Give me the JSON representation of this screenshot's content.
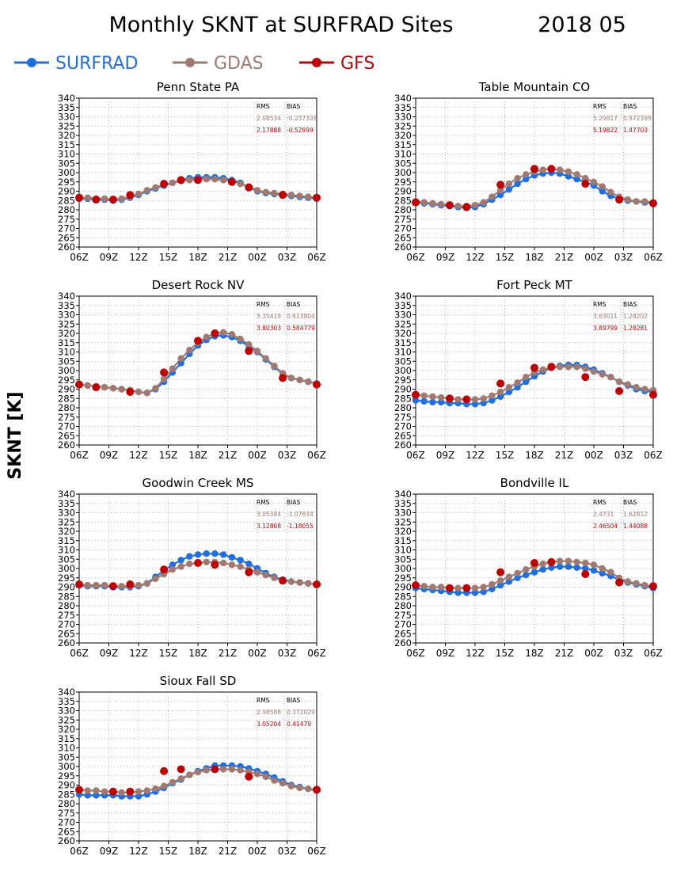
{
  "title": "Monthly SKNT at SURFRAD Sites",
  "date": "2018 05",
  "ylabel": "SKNT [K]",
  "legend": [
    {
      "name": "SURFRAD",
      "color": "#1f6fe0"
    },
    {
      "name": "GDAS",
      "color": "#a07a70"
    },
    {
      "name": "GFS",
      "color": "#c00000"
    }
  ],
  "stats_headers": {
    "rms": "RMS",
    "bias": "BIAS"
  },
  "chart_data": [
    {
      "type": "line",
      "title": "Penn State PA",
      "x_ticks": [
        "06Z",
        "09Z",
        "12Z",
        "15Z",
        "18Z",
        "21Z",
        "00Z",
        "03Z",
        "06Z"
      ],
      "ylim": [
        260,
        340
      ],
      "yticks": [
        260,
        265,
        270,
        275,
        280,
        285,
        290,
        295,
        300,
        305,
        310,
        315,
        320,
        325,
        330,
        335,
        340
      ],
      "grid": true,
      "stats": {
        "gdas": {
          "rms": "2.08534",
          "bias": "-0.237328"
        },
        "gfs": {
          "rms": "2.17888",
          "bias": "-0.52999"
        }
      },
      "series": [
        {
          "name": "SURFRAD",
          "values": [
            286,
            286,
            285.5,
            285.5,
            285,
            285.5,
            286.5,
            288,
            290,
            291.5,
            293,
            294.5,
            296,
            297,
            297.5,
            297.5,
            297.5,
            297,
            296,
            294.5,
            292,
            290,
            289,
            288.5,
            288,
            287.5,
            287,
            286.5,
            286
          ]
        },
        {
          "name": "GDAS",
          "values": [
            286.5,
            286.5,
            286,
            286,
            285.5,
            286,
            287,
            288.5,
            290.5,
            292,
            293.5,
            294.5,
            295.5,
            296,
            296.5,
            296.5,
            296.5,
            296,
            295.5,
            294,
            292.5,
            290.5,
            289.5,
            289,
            288.5,
            288,
            287.5,
            287,
            286.5
          ]
        },
        {
          "name": "GFS",
          "values": [
            286.5,
            null,
            285.5,
            null,
            285.5,
            null,
            288,
            null,
            null,
            null,
            294,
            null,
            296,
            null,
            296,
            null,
            null,
            null,
            295,
            null,
            292,
            null,
            null,
            null,
            288,
            null,
            null,
            null,
            286.5
          ]
        }
      ]
    },
    {
      "type": "line",
      "title": "Table Mountain CO",
      "x_ticks": [
        "06Z",
        "09Z",
        "12Z",
        "15Z",
        "18Z",
        "21Z",
        "00Z",
        "03Z",
        "06Z"
      ],
      "ylim": [
        260,
        340
      ],
      "yticks": [
        260,
        265,
        270,
        275,
        280,
        285,
        290,
        295,
        300,
        305,
        310,
        315,
        320,
        325,
        330,
        335,
        340
      ],
      "grid": true,
      "stats": {
        "gdas": {
          "rms": "5.29817",
          "bias": "0.972395"
        },
        "gfs": {
          "rms": "5.19822",
          "bias": "1.47703"
        }
      },
      "series": [
        {
          "name": "SURFRAD",
          "values": [
            284,
            283.5,
            283,
            282.5,
            282,
            281.5,
            281,
            281.5,
            283,
            285.5,
            288,
            291,
            294,
            296.5,
            298.5,
            299.5,
            300,
            299.5,
            298,
            296.5,
            295,
            293,
            290,
            287.5,
            286,
            285,
            284.5,
            284,
            283.5
          ]
        },
        {
          "name": "GDAS",
          "values": [
            284.5,
            284,
            283.5,
            283,
            282.5,
            282,
            282,
            282.5,
            284,
            287,
            290.5,
            294,
            297,
            299,
            300.5,
            301.5,
            302,
            301.5,
            300.5,
            299,
            297,
            295,
            292.5,
            289.5,
            287,
            285.5,
            284.5,
            284.5,
            284
          ]
        },
        {
          "name": "GFS",
          "values": [
            284,
            null,
            null,
            null,
            282.5,
            null,
            281.5,
            null,
            null,
            null,
            293.5,
            null,
            null,
            null,
            302,
            null,
            302,
            null,
            null,
            null,
            294,
            null,
            null,
            null,
            285.5,
            null,
            null,
            null,
            283.5
          ]
        }
      ]
    },
    {
      "type": "line",
      "title": "Desert Rock NV",
      "x_ticks": [
        "06Z",
        "09Z",
        "12Z",
        "15Z",
        "18Z",
        "21Z",
        "00Z",
        "03Z",
        "06Z"
      ],
      "ylim": [
        260,
        340
      ],
      "yticks": [
        260,
        265,
        270,
        275,
        280,
        285,
        290,
        295,
        300,
        305,
        310,
        315,
        320,
        325,
        330,
        335,
        340
      ],
      "grid": true,
      "stats": {
        "gdas": {
          "rms": "3.35419",
          "bias": "0.613804"
        },
        "gfs": {
          "rms": "3.80303",
          "bias": "0.584779"
        }
      },
      "series": [
        {
          "name": "SURFRAD",
          "values": [
            292.5,
            292,
            291.5,
            291,
            290.5,
            290,
            289.5,
            288.5,
            288,
            290,
            294,
            299,
            304,
            309,
            313.5,
            316.5,
            318.5,
            319,
            318,
            316,
            313,
            310,
            306,
            302,
            298,
            296,
            295,
            294,
            293
          ]
        },
        {
          "name": "GDAS",
          "values": [
            292.5,
            292,
            291.5,
            291,
            290.5,
            290,
            289.5,
            288.5,
            288,
            290.5,
            295.5,
            301,
            306.5,
            311,
            315,
            318,
            320,
            320.5,
            319.5,
            317,
            314,
            310.5,
            306.5,
            302.5,
            298.5,
            296,
            295,
            294,
            293
          ]
        },
        {
          "name": "GFS",
          "values": [
            292.5,
            null,
            291,
            null,
            null,
            null,
            288.5,
            null,
            null,
            null,
            299,
            null,
            null,
            null,
            316,
            null,
            320,
            null,
            null,
            null,
            310.5,
            null,
            null,
            null,
            296,
            null,
            null,
            null,
            292.5
          ]
        }
      ]
    },
    {
      "type": "line",
      "title": "Fort Peck MT",
      "x_ticks": [
        "06Z",
        "09Z",
        "12Z",
        "15Z",
        "18Z",
        "21Z",
        "00Z",
        "03Z",
        "06Z"
      ],
      "ylim": [
        260,
        340
      ],
      "yticks": [
        260,
        265,
        270,
        275,
        280,
        285,
        290,
        295,
        300,
        305,
        310,
        315,
        320,
        325,
        330,
        335,
        340
      ],
      "grid": true,
      "stats": {
        "gdas": {
          "rms": "3.63011",
          "bias": "1.28202"
        },
        "gfs": {
          "rms": "3.89799",
          "bias": "1.28281"
        }
      },
      "series": [
        {
          "name": "SURFRAD",
          "values": [
            284,
            283.5,
            283,
            283,
            282.5,
            282.5,
            282,
            282,
            282.5,
            284,
            286,
            288.5,
            291,
            294,
            297,
            299.5,
            301.5,
            302.5,
            303,
            303,
            302,
            300.5,
            298.5,
            296.5,
            294,
            292,
            290,
            289,
            288.5
          ]
        },
        {
          "name": "GDAS",
          "values": [
            287,
            286.5,
            286,
            285.5,
            285,
            284.5,
            284.5,
            284.5,
            285,
            286.5,
            288.5,
            291,
            293.5,
            296.5,
            299,
            300.5,
            301.5,
            302,
            302,
            302,
            301,
            299.5,
            298,
            296.5,
            294,
            292.5,
            291,
            290,
            289.5
          ]
        },
        {
          "name": "GFS",
          "values": [
            287,
            null,
            null,
            null,
            285,
            null,
            284.5,
            null,
            null,
            null,
            293,
            null,
            null,
            null,
            301.5,
            null,
            302,
            null,
            null,
            null,
            296.5,
            null,
            null,
            null,
            289,
            null,
            null,
            null,
            287
          ]
        }
      ]
    },
    {
      "type": "line",
      "title": "Goodwin Creek MS",
      "x_ticks": [
        "06Z",
        "09Z",
        "12Z",
        "15Z",
        "18Z",
        "21Z",
        "00Z",
        "03Z",
        "06Z"
      ],
      "ylim": [
        260,
        340
      ],
      "yticks": [
        260,
        265,
        270,
        275,
        280,
        285,
        290,
        295,
        300,
        305,
        310,
        315,
        320,
        325,
        330,
        335,
        340
      ],
      "grid": true,
      "stats": {
        "gdas": {
          "rms": "3.05384",
          "bias": "-1.07634"
        },
        "gfs": {
          "rms": "3.12808",
          "bias": "-1.18055"
        }
      },
      "series": [
        {
          "name": "SURFRAD",
          "values": [
            291,
            290.5,
            290.5,
            290.5,
            290,
            290,
            290,
            290.5,
            292,
            295.5,
            299,
            302,
            304.5,
            306.5,
            307.5,
            308,
            308,
            307.5,
            306,
            304.5,
            302.5,
            300,
            297.5,
            295.5,
            294,
            293,
            292.5,
            292,
            291.5
          ]
        },
        {
          "name": "GDAS",
          "values": [
            291.5,
            291,
            291,
            291,
            290.5,
            290.5,
            290.5,
            291,
            292,
            294.5,
            297,
            299.5,
            301,
            302.5,
            303,
            303.5,
            303.5,
            303,
            302,
            301,
            299.5,
            298,
            296.5,
            295,
            293.5,
            293,
            292.5,
            292,
            291.5
          ]
        },
        {
          "name": "GFS",
          "values": [
            291.5,
            null,
            null,
            null,
            290.5,
            null,
            291.5,
            null,
            null,
            null,
            299.5,
            null,
            null,
            null,
            303,
            null,
            302,
            null,
            null,
            null,
            298,
            null,
            null,
            null,
            293.5,
            null,
            null,
            null,
            291.5
          ]
        }
      ]
    },
    {
      "type": "line",
      "title": "Bondville IL",
      "x_ticks": [
        "06Z",
        "09Z",
        "12Z",
        "15Z",
        "18Z",
        "21Z",
        "00Z",
        "03Z",
        "06Z"
      ],
      "ylim": [
        260,
        340
      ],
      "yticks": [
        260,
        265,
        270,
        275,
        280,
        285,
        290,
        295,
        300,
        305,
        310,
        315,
        320,
        325,
        330,
        335,
        340
      ],
      "grid": true,
      "stats": {
        "gdas": {
          "rms": "2.4731",
          "bias": "1.62812"
        },
        "gfs": {
          "rms": "2.46504",
          "bias": "1.44088"
        }
      },
      "series": [
        {
          "name": "SURFRAD",
          "values": [
            289.5,
            289,
            288.5,
            288,
            287.5,
            287,
            287,
            287,
            287.5,
            289,
            291,
            293,
            295,
            296.5,
            298,
            299.5,
            300.5,
            301,
            301,
            300.5,
            300,
            299,
            297.5,
            296,
            294,
            292.5,
            291.5,
            290.5,
            289.5
          ]
        },
        {
          "name": "GDAS",
          "values": [
            291,
            290.5,
            290,
            290,
            289.5,
            289.5,
            289.5,
            289.5,
            290,
            291.5,
            293.5,
            295.5,
            297.5,
            299.5,
            301,
            302.5,
            303.5,
            304,
            304,
            303.5,
            303,
            302,
            300,
            298,
            295,
            293,
            292,
            291,
            290.5
          ]
        },
        {
          "name": "GFS",
          "values": [
            291,
            null,
            null,
            null,
            289.5,
            null,
            289.5,
            null,
            null,
            null,
            298,
            null,
            null,
            null,
            303,
            null,
            303.5,
            null,
            null,
            null,
            297,
            null,
            null,
            null,
            292.5,
            null,
            null,
            null,
            290.5
          ]
        }
      ]
    },
    {
      "type": "line",
      "title": "Sioux Fall SD",
      "x_ticks": [
        "06Z",
        "09Z",
        "12Z",
        "15Z",
        "18Z",
        "21Z",
        "00Z",
        "03Z",
        "06Z"
      ],
      "ylim": [
        260,
        340
      ],
      "yticks": [
        260,
        265,
        270,
        275,
        280,
        285,
        290,
        295,
        300,
        305,
        310,
        315,
        320,
        325,
        330,
        335,
        340
      ],
      "grid": true,
      "stats": {
        "gdas": {
          "rms": "2.98588",
          "bias": "0.372029"
        },
        "gfs": {
          "rms": "3.05204",
          "bias": "0.41479"
        }
      },
      "series": [
        {
          "name": "SURFRAD",
          "values": [
            285,
            284.5,
            284.5,
            284.5,
            284.5,
            284,
            284,
            284,
            285,
            286.5,
            288.5,
            291,
            293,
            295.5,
            297.5,
            299,
            300.5,
            300.5,
            300.5,
            300,
            299,
            297.5,
            296,
            294,
            292,
            290,
            289,
            288,
            287
          ]
        },
        {
          "name": "GDAS",
          "values": [
            287.5,
            287,
            287,
            286.5,
            286.5,
            286,
            286,
            286.5,
            287,
            288,
            289.5,
            291.5,
            293.5,
            295.5,
            297,
            298,
            298.5,
            298.5,
            298.5,
            298,
            297,
            296,
            294.5,
            292.5,
            291,
            289.5,
            288.5,
            288,
            287.5
          ]
        },
        {
          "name": "GFS",
          "values": [
            287.5,
            null,
            null,
            null,
            286.5,
            null,
            286.5,
            null,
            null,
            null,
            297.5,
            null,
            298.5,
            null,
            null,
            null,
            298.5,
            null,
            null,
            null,
            294.5,
            null,
            null,
            null,
            null,
            null,
            null,
            null,
            287.5
          ]
        }
      ]
    }
  ]
}
